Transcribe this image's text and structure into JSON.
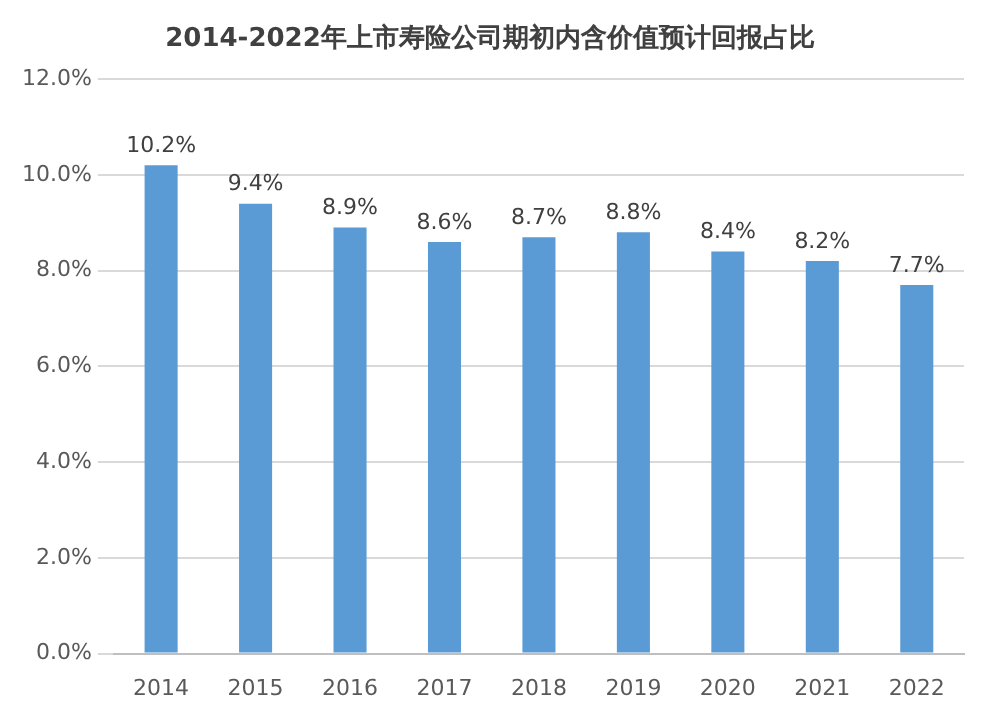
{
  "chart_data": {
    "type": "bar",
    "title": "2014-2022年上市寿险公司期初内含价值预计回报占比",
    "categories": [
      "2014",
      "2015",
      "2016",
      "2017",
      "2018",
      "2019",
      "2020",
      "2021",
      "2022"
    ],
    "values": [
      10.2,
      9.4,
      8.9,
      8.6,
      8.7,
      8.8,
      8.4,
      8.2,
      7.7
    ],
    "value_labels": [
      "10.2%",
      "9.4%",
      "8.9%",
      "8.6%",
      "8.7%",
      "8.8%",
      "8.4%",
      "8.2%",
      "7.7%"
    ],
    "color": "#5b9bd5",
    "ylim": [
      0,
      12
    ],
    "yticks": [
      {
        "value": 0,
        "label": "0.0%"
      },
      {
        "value": 2,
        "label": "2.0%"
      },
      {
        "value": 4,
        "label": "4.0%"
      },
      {
        "value": 6,
        "label": "6.0%"
      },
      {
        "value": 8,
        "label": "8.0%"
      },
      {
        "value": 10,
        "label": "10.0%"
      },
      {
        "value": 12,
        "label": "12.0%"
      }
    ],
    "grid": "y",
    "legend": false
  }
}
